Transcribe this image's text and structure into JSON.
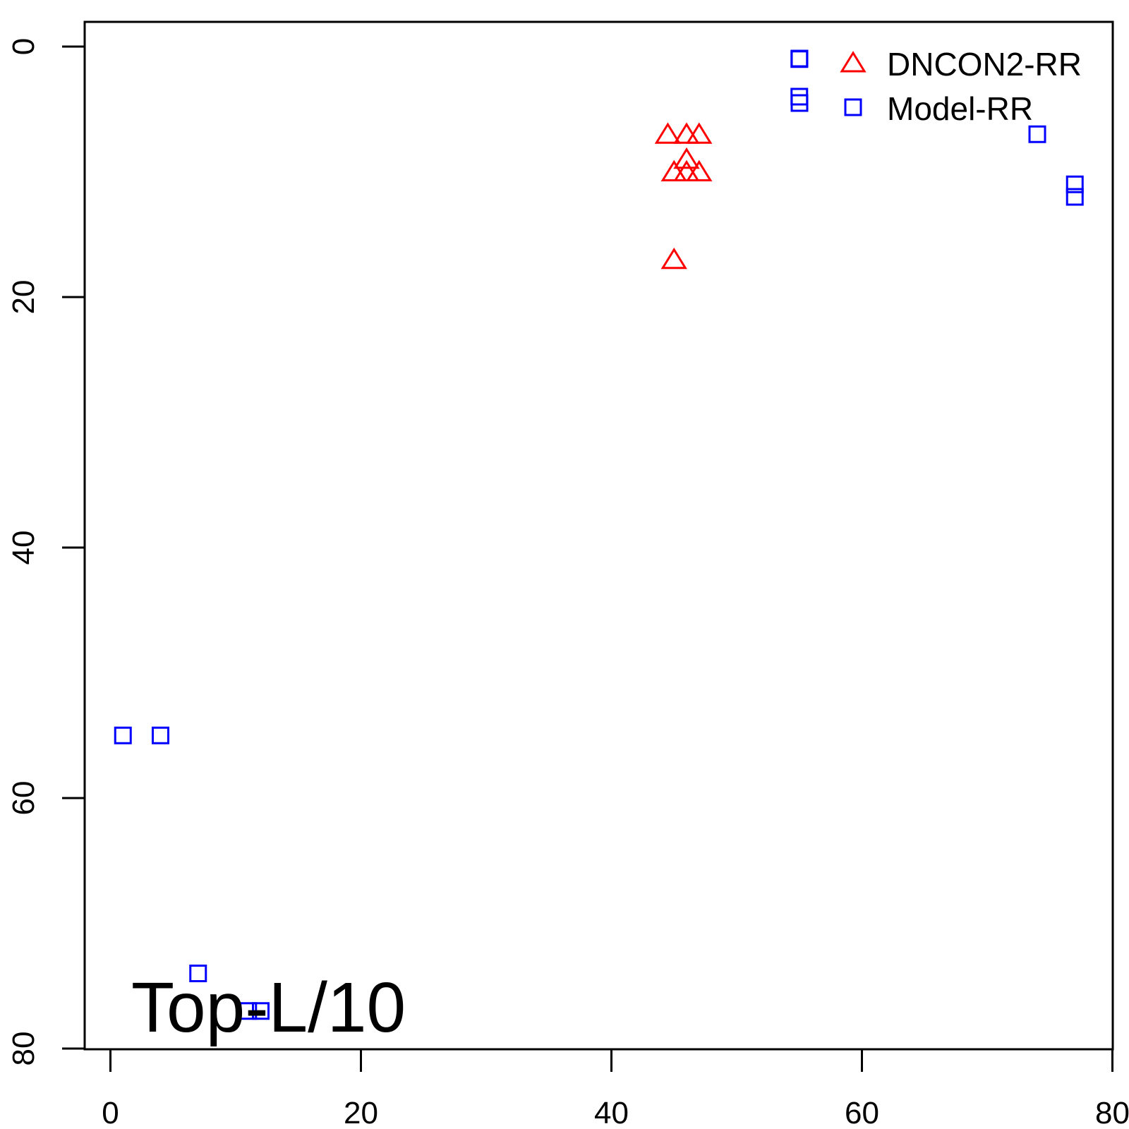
{
  "chart_data": {
    "type": "scatter",
    "title": "",
    "xlabel": "",
    "ylabel": "",
    "xlim": [
      -2,
      80
    ],
    "ylim": [
      80,
      -2
    ],
    "y_axis_reversed": true,
    "x_ticks": [
      0,
      20,
      40,
      60,
      80
    ],
    "y_ticks": [
      0,
      20,
      40,
      60,
      80
    ],
    "grid": false,
    "legend_position": "top-right",
    "legend": [
      {
        "label": "DNCON2-RR",
        "marker": "triangle",
        "color": "#ff0000"
      },
      {
        "label": "Model-RR",
        "marker": "square",
        "color": "#0000ff"
      }
    ],
    "annotation": "Top-L/10",
    "series": [
      {
        "name": "DNCON2-RR",
        "marker": "triangle",
        "color": "#ff0000",
        "points": [
          {
            "x": 44.5,
            "y": 7
          },
          {
            "x": 46.0,
            "y": 7
          },
          {
            "x": 47.0,
            "y": 7
          },
          {
            "x": 46.0,
            "y": 9
          },
          {
            "x": 45.0,
            "y": 10
          },
          {
            "x": 46.0,
            "y": 10
          },
          {
            "x": 47.0,
            "y": 10
          },
          {
            "x": 45.0,
            "y": 17
          }
        ]
      },
      {
        "name": "Model-RR",
        "marker": "square",
        "color": "#0000ff",
        "points": [
          {
            "x": 55.0,
            "y": 1
          },
          {
            "x": 55.0,
            "y": 4
          },
          {
            "x": 74.0,
            "y": 7
          },
          {
            "x": 77.0,
            "y": 11
          },
          {
            "x": 77.0,
            "y": 12
          },
          {
            "x": 1.0,
            "y": 55
          },
          {
            "x": 4.0,
            "y": 55
          },
          {
            "x": 7.0,
            "y": 74
          },
          {
            "x": 11.0,
            "y": 77
          },
          {
            "x": 12.0,
            "y": 77
          }
        ]
      }
    ]
  }
}
